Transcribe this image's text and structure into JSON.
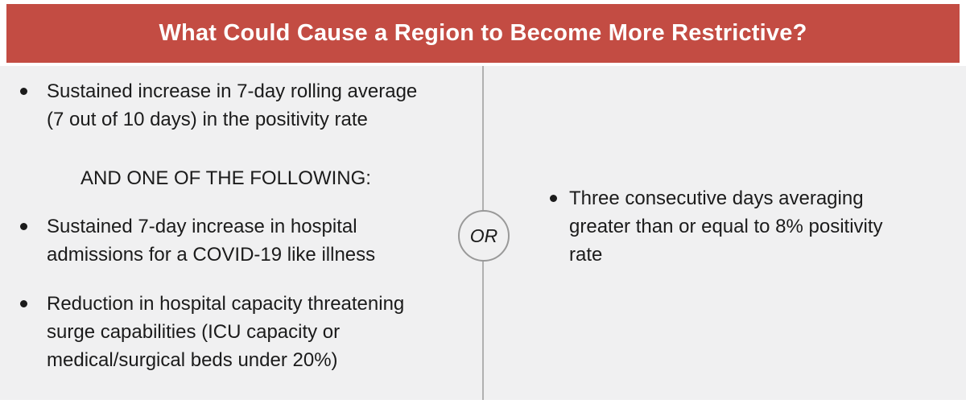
{
  "header": {
    "title": "What Could Cause a Region to Become More Restrictive?"
  },
  "left_column": {
    "bullets_top": [
      {
        "text": "Sustained increase in 7-day rolling average\n(7 out of 10 days) in the positivity rate"
      }
    ],
    "connector_label": "AND ONE OF THE FOLLOWING:",
    "bullets_bottom": [
      {
        "text": "Sustained 7-day increase in hospital\nadmissions for a COVID-19 like illness"
      },
      {
        "text": "Reduction in hospital capacity threatening\nsurge capabilities (ICU capacity or\nmedical/surgical beds under 20%)"
      }
    ]
  },
  "connector": {
    "or_label": "OR"
  },
  "right_column": {
    "bullets": [
      {
        "text": "Three consecutive days averaging\ngreater than or equal to 8% positivity\nrate"
      }
    ]
  },
  "colors": {
    "header-bg": "#c34c43",
    "header-text": "#ffffff",
    "body-bg": "#f0f0f1",
    "divider": "#b0b0b0",
    "circle-border": "#999999",
    "text": "#1b1b1b"
  }
}
